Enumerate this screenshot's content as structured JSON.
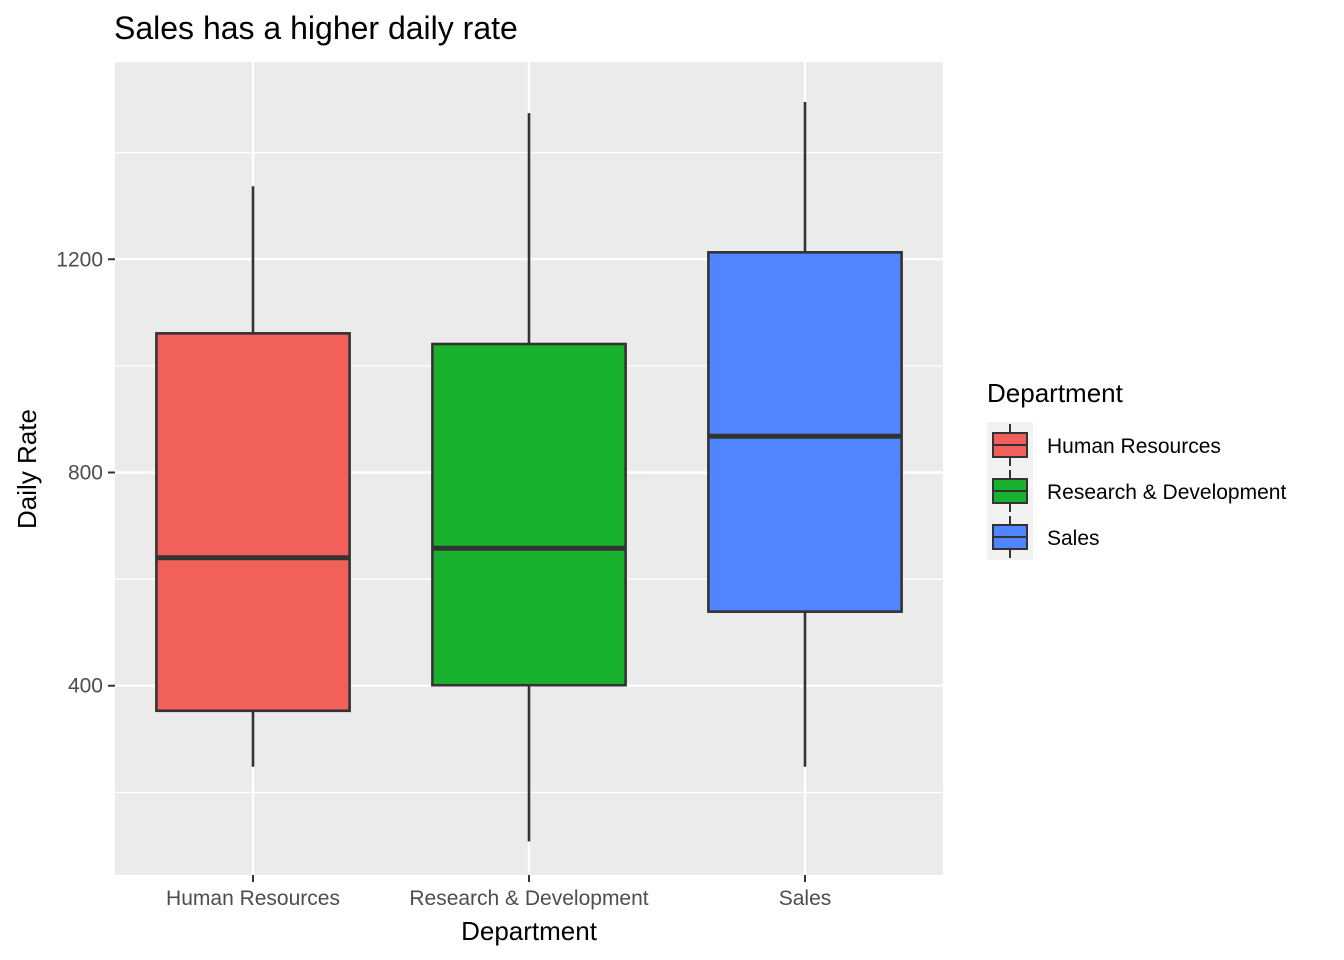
{
  "chart_data": {
    "type": "boxplot",
    "title": "Sales has a higher daily rate",
    "xlabel": "Department",
    "ylabel": "Daily Rate",
    "ylim": [
      45,
      1570
    ],
    "y_ticks": [
      400,
      800,
      1200
    ],
    "y_minor_ticks": [
      200,
      600,
      1000,
      1400
    ],
    "grid": true,
    "categories": [
      "Human Resources",
      "Research & Development",
      "Sales"
    ],
    "colors": [
      "#F2605B",
      "#19B22E",
      "#4F86FF"
    ],
    "boxes": [
      {
        "category": "Human Resources",
        "min": 248,
        "q1": 353,
        "median": 640,
        "q3": 1061,
        "max": 1337
      },
      {
        "category": "Research & Development",
        "min": 108,
        "q1": 401,
        "median": 658,
        "q3": 1041,
        "max": 1474
      },
      {
        "category": "Sales",
        "min": 248,
        "q1": 539,
        "median": 868,
        "q3": 1213,
        "max": 1495
      }
    ],
    "legend": {
      "title": "Department",
      "position": "right",
      "entries": [
        "Human Resources",
        "Research & Development",
        "Sales"
      ]
    }
  }
}
